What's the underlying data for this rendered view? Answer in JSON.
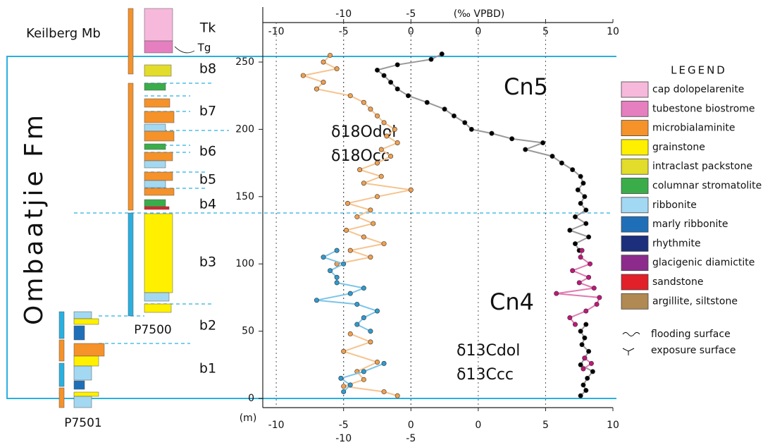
{
  "chart_data": {
    "type": "scatter",
    "x_label": "(‰ VPBD)",
    "y_label": "(m)",
    "xlim": [
      -16,
      10
    ],
    "xticks": [
      -10,
      -5,
      0,
      5,
      10
    ],
    "x2lim": [
      -11,
      15
    ],
    "x2ticks": [
      -10,
      -5,
      0
    ],
    "ylim": [
      0,
      290
    ],
    "yticks": [
      0,
      50,
      100,
      150,
      200,
      250
    ],
    "grid": true,
    "annotations": [
      {
        "text": "Cn5",
        "color": "#d4208a"
      },
      {
        "text": "Cn4",
        "color": "#d4208a"
      }
    ],
    "series": [
      {
        "name": "δ18Odol",
        "axis": "x2",
        "color": "#f0a050",
        "line_color": "#f6c38e",
        "y": [
          2,
          5,
          9,
          14,
          20,
          27,
          35,
          42,
          48,
          60,
          100,
          105,
          110,
          115,
          120,
          125,
          130,
          135,
          140,
          145,
          150,
          155,
          160,
          165,
          170,
          175,
          180,
          185,
          190,
          195,
          200,
          205,
          210,
          215,
          220,
          225,
          230,
          235,
          240,
          245,
          250,
          255
        ],
        "x": [
          -1,
          -2,
          -5,
          -3.5,
          -4,
          -2.5,
          -5,
          -3,
          -4.5,
          null,
          -5.5,
          -3,
          -4.5,
          -2,
          -3.5,
          -4.8,
          -2.8,
          -4,
          -3,
          -4.7,
          -2.5,
          0,
          -3.5,
          -2.2,
          -3.8,
          -2.5,
          -1.5,
          -2.2,
          -1,
          -1.8,
          -1.2,
          -2,
          -2.5,
          -3,
          -3.5,
          -4.5,
          -7,
          -6.5,
          -8,
          -5.5,
          -6.5,
          -6
        ]
      },
      {
        "name": "δ18Occ",
        "axis": "x2",
        "color": "#2f9ad0",
        "line_color": "#7cc4e8",
        "y": [
          5,
          10,
          15,
          20,
          26,
          40,
          50,
          55,
          60,
          65,
          70,
          73,
          78,
          82,
          86,
          90,
          95,
          100,
          105,
          110
        ],
        "x": [
          -5,
          -4.5,
          -5.2,
          -3.5,
          -2,
          null,
          -3,
          -4,
          -3.5,
          -2.5,
          -4,
          -7,
          -4.5,
          -3.5,
          -5.5,
          -5.5,
          -6,
          -5,
          -6.5,
          -5.5
        ]
      },
      {
        "name": "δ13Cdol",
        "color": "#000000",
        "line_color": "#999999",
        "y": [
          2,
          6,
          10,
          15,
          20,
          25,
          30,
          35,
          40,
          45,
          50,
          55,
          85,
          110,
          115,
          120,
          125,
          130,
          135,
          140,
          145,
          150,
          155,
          160,
          165,
          170,
          175,
          180,
          185,
          190,
          193,
          197,
          200,
          205,
          210,
          215,
          220,
          225,
          230,
          235,
          240,
          244,
          248,
          252,
          256
        ],
        "x": [
          7.6,
          8,
          7.8,
          8.1,
          8.5,
          7.6,
          7.9,
          8.2,
          7.7,
          7.9,
          7.6,
          8,
          null,
          7.5,
          7.2,
          8.2,
          6.8,
          8,
          7.2,
          8,
          7.6,
          7.9,
          7.4,
          7.8,
          7.6,
          7,
          6.2,
          5.5,
          3.5,
          4.8,
          2.5,
          1,
          -0.5,
          -1,
          -1.8,
          -2.5,
          -3.8,
          -5.2,
          -6,
          -6.5,
          -7,
          -7.5,
          -6,
          -3.5,
          -2.7
        ]
      },
      {
        "name": "δ13Ccc",
        "color": "#c0177a",
        "line_color": "#e07ab0",
        "y": [
          22,
          26,
          30,
          45,
          55,
          60,
          65,
          70,
          75,
          78,
          82,
          86,
          90,
          95,
          100,
          105,
          110
        ],
        "x": [
          7.8,
          8.4,
          7.9,
          null,
          7.2,
          6.8,
          8,
          8.8,
          9,
          5.8,
          8.6,
          7.5,
          8.2,
          7,
          8.3,
          7.6,
          7.7
        ]
      }
    ]
  },
  "stratigraphy": {
    "formation": "Ombaatjie Fm",
    "member": "Keilberg Mb",
    "units": [
      "Tk",
      "Tg",
      "b8",
      "b7",
      "b6",
      "b5",
      "b4",
      "b3",
      "b2",
      "b1"
    ],
    "sections": [
      "P7500",
      "P7501"
    ]
  },
  "lithology_legend": {
    "title": "LEGEND",
    "items": [
      {
        "label": "cap dolopelarenite",
        "color": "#f6b9dc"
      },
      {
        "label": "tubestone biostrome",
        "color": "#e57fbf"
      },
      {
        "label": "microbialaminite",
        "color": "#f5922a"
      },
      {
        "label": "grainstone",
        "color": "#fff000"
      },
      {
        "label": "intraclast packstone",
        "color": "#e2dc2a"
      },
      {
        "label": "columnar stromatolite",
        "color": "#3aad4a"
      },
      {
        "label": "ribbonite",
        "color": "#a3d8f2"
      },
      {
        "label": "marly ribbonite",
        "color": "#1f6fb8"
      },
      {
        "label": "rhythmite",
        "color": "#1c2f7c"
      },
      {
        "label": "glacigenic diamictite",
        "color": "#8c2b8c"
      },
      {
        "label": "sandstone",
        "color": "#e2202a"
      },
      {
        "label": "argillite, siltstone",
        "color": "#b08a52"
      }
    ],
    "surfaces": [
      "flooding surface",
      "exposure surface"
    ]
  }
}
